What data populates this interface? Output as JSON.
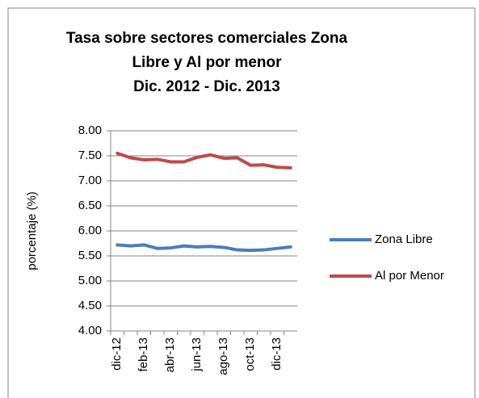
{
  "chart_data": {
    "type": "line",
    "title": [
      "Tasa sobre sectores comerciales Zona",
      "Libre y Al por menor",
      "Dic.  2012 - Dic. 2013"
    ],
    "y_label": "porcentaje (%)",
    "categories": [
      "dic-12",
      null,
      "feb-13",
      null,
      "abr-13",
      null,
      "jun-13",
      null,
      "ago-13",
      null,
      "oct-13",
      null,
      "dic-13",
      null
    ],
    "series": [
      {
        "name": "Zona Libre",
        "color": "#4a7ebb",
        "values": [
          5.72,
          5.7,
          5.72,
          5.65,
          5.66,
          5.7,
          5.68,
          5.69,
          5.67,
          5.62,
          5.61,
          5.62,
          5.65,
          5.68
        ]
      },
      {
        "name": "Al por Menor",
        "color": "#be4b48",
        "values": [
          7.55,
          7.46,
          7.42,
          7.43,
          7.38,
          7.38,
          7.47,
          7.52,
          7.45,
          7.46,
          7.31,
          7.32,
          7.27,
          7.26
        ]
      }
    ],
    "ylim": [
      4,
      8
    ],
    "yticks": [
      {
        "value": 4,
        "label": "4.00"
      },
      {
        "value": 4.5,
        "label": "4.50"
      },
      {
        "value": 5,
        "label": "5.00"
      },
      {
        "value": 5.5,
        "label": "5.50"
      },
      {
        "value": 6,
        "label": "6.00"
      },
      {
        "value": 6.5,
        "label": "6.50"
      },
      {
        "value": 7,
        "label": "7.00"
      },
      {
        "value": 7.5,
        "label": "7.50"
      },
      {
        "value": 8,
        "label": "8.00"
      }
    ],
    "grid": true,
    "legend": "right"
  }
}
